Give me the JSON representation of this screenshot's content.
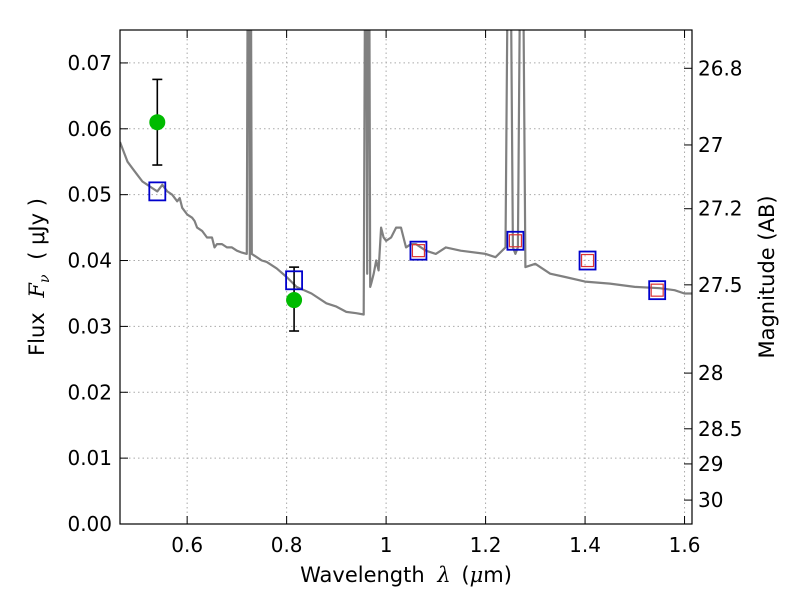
{
  "chart_data": {
    "type": "line",
    "xlabel_prefix": "Wavelength",
    "xlabel_symbol": "λ",
    "xlabel_unit_open": "(",
    "xlabel_unit_mu": "μ",
    "xlabel_unit_rest": "m)",
    "ylabel_prefix": "Flux",
    "ylabel_symbol": "F",
    "ylabel_subscript": "ν",
    "ylabel_unit": "( μJy )",
    "y2label": "Magnitude (AB)",
    "xlim": [
      0.465,
      1.615
    ],
    "ylim": [
      0.0,
      0.075
    ],
    "grid": true,
    "x_ticks": [
      {
        "value": 0.6,
        "label": "0.6"
      },
      {
        "value": 0.8,
        "label": "0.8"
      },
      {
        "value": 1.0,
        "label": "1"
      },
      {
        "value": 1.2,
        "label": "1.2"
      },
      {
        "value": 1.4,
        "label": "1.4"
      },
      {
        "value": 1.6,
        "label": "1.6"
      }
    ],
    "y_ticks": [
      {
        "value": 0.0,
        "label": "0.00"
      },
      {
        "value": 0.01,
        "label": "0.01"
      },
      {
        "value": 0.02,
        "label": "0.02"
      },
      {
        "value": 0.03,
        "label": "0.03"
      },
      {
        "value": 0.04,
        "label": "0.04"
      },
      {
        "value": 0.05,
        "label": "0.05"
      },
      {
        "value": 0.06,
        "label": "0.06"
      },
      {
        "value": 0.07,
        "label": "0.07"
      }
    ],
    "y2_ticks": [
      {
        "value": 26.8,
        "label": "26.8"
      },
      {
        "value": 27.0,
        "label": "27"
      },
      {
        "value": 27.2,
        "label": "27.2"
      },
      {
        "value": 27.5,
        "label": "27.5"
      },
      {
        "value": 28.0,
        "label": "28"
      },
      {
        "value": 28.5,
        "label": "28.5"
      },
      {
        "value": 29.0,
        "label": "29"
      },
      {
        "value": 30.0,
        "label": "30"
      }
    ],
    "colors": {
      "spectrum": "#808080",
      "observed": "#00bb00",
      "model_box": "#0000cc",
      "model_inner": "#dd3333",
      "grid": "#aaaaaa"
    },
    "series": [
      {
        "name": "model spectrum",
        "type": "line",
        "x": [
          0.465,
          0.47,
          0.48,
          0.49,
          0.5,
          0.51,
          0.52,
          0.53,
          0.54,
          0.55,
          0.56,
          0.57,
          0.58,
          0.585,
          0.59,
          0.6,
          0.61,
          0.615,
          0.62,
          0.63,
          0.64,
          0.65,
          0.655,
          0.66,
          0.67,
          0.68,
          0.69,
          0.7,
          0.71,
          0.72,
          0.722,
          0.724,
          0.726,
          0.728,
          0.73,
          0.74,
          0.75,
          0.76,
          0.78,
          0.8,
          0.82,
          0.85,
          0.88,
          0.9,
          0.92,
          0.94,
          0.955,
          0.958,
          0.96,
          0.962,
          0.964,
          0.966,
          0.968,
          0.97,
          0.975,
          0.98,
          0.985,
          0.99,
          0.995,
          1.0,
          1.01,
          1.02,
          1.03,
          1.04,
          1.05,
          1.06,
          1.08,
          1.1,
          1.12,
          1.15,
          1.2,
          1.22,
          1.24,
          1.245,
          1.25,
          1.255,
          1.26,
          1.265,
          1.27,
          1.275,
          1.28,
          1.3,
          1.33,
          1.36,
          1.4,
          1.45,
          1.5,
          1.55,
          1.58,
          1.6,
          1.615
        ],
        "y": [
          0.058,
          0.057,
          0.055,
          0.054,
          0.053,
          0.052,
          0.0515,
          0.051,
          0.0505,
          0.0515,
          0.0505,
          0.05,
          0.049,
          0.0495,
          0.048,
          0.047,
          0.0465,
          0.046,
          0.045,
          0.0445,
          0.0435,
          0.0435,
          0.042,
          0.0425,
          0.0425,
          0.042,
          0.042,
          0.0415,
          0.0412,
          0.041,
          0.09,
          0.09,
          0.0402,
          0.09,
          0.041,
          0.0405,
          0.04,
          0.0398,
          0.0388,
          0.0375,
          0.036,
          0.035,
          0.0335,
          0.033,
          0.0322,
          0.032,
          0.0318,
          0.09,
          0.09,
          0.038,
          0.09,
          0.09,
          0.036,
          0.0365,
          0.038,
          0.04,
          0.0385,
          0.045,
          0.0435,
          0.043,
          0.0435,
          0.045,
          0.045,
          0.042,
          0.0425,
          0.0425,
          0.0415,
          0.041,
          0.042,
          0.0415,
          0.041,
          0.0405,
          0.042,
          0.09,
          0.09,
          0.042,
          0.041,
          0.042,
          0.09,
          0.09,
          0.039,
          0.0395,
          0.038,
          0.0375,
          0.0368,
          0.0365,
          0.036,
          0.0358,
          0.0355,
          0.035,
          0.035
        ]
      },
      {
        "name": "observed photometry",
        "type": "scatter",
        "x": [
          0.54,
          0.815
        ],
        "y": [
          0.061,
          0.034
        ],
        "yerr_low": [
          0.0545,
          0.0293
        ],
        "yerr_high": [
          0.0675,
          0.039
        ]
      },
      {
        "name": "model photometry",
        "type": "scatter",
        "x": [
          0.54,
          0.815,
          1.065,
          1.26,
          1.405,
          1.545
        ],
        "y": [
          0.0505,
          0.037,
          0.0415,
          0.043,
          0.04,
          0.0355
        ],
        "inner": [
          false,
          false,
          true,
          true,
          true,
          true
        ]
      }
    ]
  }
}
